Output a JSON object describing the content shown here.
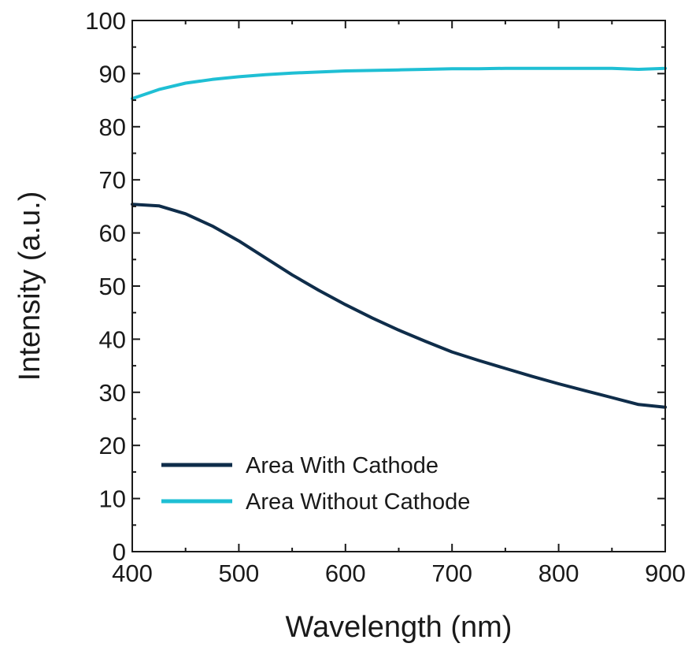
{
  "chart_data": {
    "type": "line",
    "xlabel": "Wavelength (nm)",
    "ylabel": "Intensity (a.u.)",
    "xlim": [
      400,
      900
    ],
    "ylim": [
      0,
      100
    ],
    "x_ticks": [
      400,
      500,
      600,
      700,
      800,
      900
    ],
    "y_ticks": [
      0,
      10,
      20,
      30,
      40,
      50,
      60,
      70,
      80,
      90,
      100
    ],
    "grid": false,
    "legend_position": "lower-left",
    "series": [
      {
        "name": "Area With Cathode",
        "color": "#0f2d4a",
        "x": [
          400,
          425,
          450,
          475,
          500,
          525,
          550,
          575,
          600,
          625,
          650,
          675,
          700,
          725,
          750,
          775,
          800,
          825,
          850,
          875,
          900
        ],
        "y": [
          65.4,
          65.1,
          63.6,
          61.3,
          58.5,
          55.3,
          52.1,
          49.2,
          46.5,
          44.0,
          41.7,
          39.6,
          37.6,
          36.0,
          34.5,
          33.0,
          31.6,
          30.3,
          29.0,
          27.7,
          27.2
        ]
      },
      {
        "name": "Area Without Cathode",
        "color": "#1fbfd4",
        "x": [
          400,
          425,
          450,
          475,
          500,
          525,
          550,
          575,
          600,
          625,
          650,
          675,
          700,
          725,
          750,
          775,
          800,
          825,
          850,
          875,
          900
        ],
        "y": [
          85.3,
          87.0,
          88.2,
          88.9,
          89.4,
          89.8,
          90.1,
          90.3,
          90.5,
          90.6,
          90.7,
          90.8,
          90.9,
          90.9,
          91.0,
          91.0,
          91.0,
          91.0,
          91.0,
          90.8,
          91.0
        ]
      }
    ]
  }
}
